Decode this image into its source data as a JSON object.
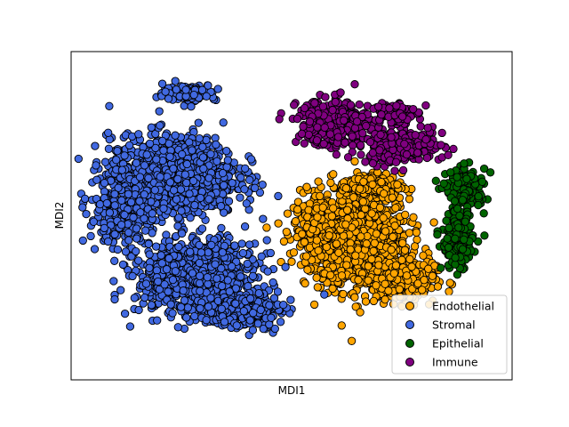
{
  "chart_data": {
    "type": "scatter",
    "title": "",
    "xlabel": "MDI1",
    "ylabel": "MDI2",
    "xlim": [
      -10,
      10
    ],
    "ylim": [
      -10,
      10
    ],
    "ticks_visible": false,
    "grid": false,
    "legend_position": "lower-right",
    "marker_edge_color": "#000000",
    "series": [
      {
        "name": "Endothelial",
        "color": "#FFA500",
        "clusters": [
          {
            "center": [
              3.3,
              -1.6
            ],
            "spread": [
              2.0,
              3.0
            ],
            "count": 900
          },
          {
            "center": [
              1.5,
              -0.9
            ],
            "spread": [
              1.4,
              2.2
            ],
            "count": 380
          },
          {
            "center": [
              4.9,
              -3.9
            ],
            "spread": [
              1.6,
              1.4
            ],
            "count": 260
          },
          {
            "center": [
              3.6,
              1.8
            ],
            "spread": [
              1.4,
              0.8
            ],
            "count": 200
          }
        ]
      },
      {
        "name": "Stromal",
        "color": "#4169E1",
        "clusters": [
          {
            "center": [
              -5.4,
              2.4
            ],
            "spread": [
              2.9,
              2.4
            ],
            "count": 1250
          },
          {
            "center": [
              -4.3,
              -3.8
            ],
            "spread": [
              2.7,
              2.2
            ],
            "count": 850
          },
          {
            "center": [
              -2.1,
              -5.8
            ],
            "spread": [
              1.7,
              1.0
            ],
            "count": 260
          },
          {
            "center": [
              -7.8,
              -0.1
            ],
            "spread": [
              1.4,
              1.6
            ],
            "count": 220
          },
          {
            "center": [
              -4.6,
              7.5
            ],
            "spread": [
              1.2,
              0.5
            ],
            "count": 150
          }
        ]
      },
      {
        "name": "Epithelial",
        "color": "#006400",
        "clusters": [
          {
            "center": [
              7.9,
              1.6
            ],
            "spread": [
              0.9,
              1.2
            ],
            "count": 160
          },
          {
            "center": [
              7.5,
              -1.5
            ],
            "spread": [
              0.7,
              1.7
            ],
            "count": 170
          }
        ]
      },
      {
        "name": "Immune",
        "color": "#800080",
        "clusters": [
          {
            "center": [
              1.9,
              5.7
            ],
            "spread": [
              1.6,
              1.4
            ],
            "count": 330
          },
          {
            "center": [
              5.0,
              4.2
            ],
            "spread": [
              1.9,
              1.0
            ],
            "count": 280
          },
          {
            "center": [
              4.6,
              6.3
            ],
            "spread": [
              0.9,
              0.7
            ],
            "count": 110
          }
        ]
      }
    ]
  }
}
